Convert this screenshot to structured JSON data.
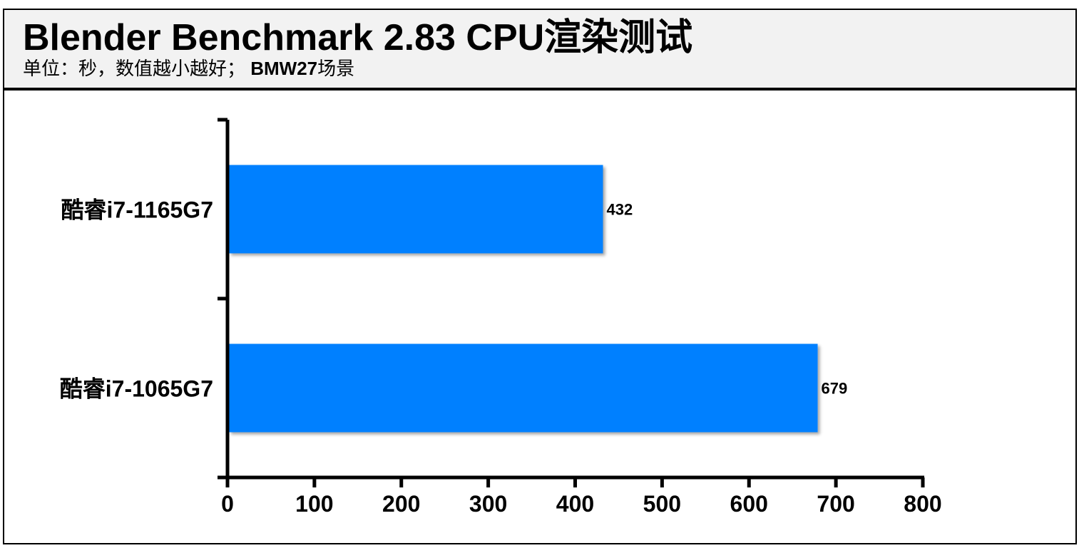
{
  "header": {
    "title": "Blender Benchmark 2.83 CPU渲染测试",
    "subtitle_prefix": "单位：秒，数值越小越好；",
    "subtitle_bold": "BMW27",
    "subtitle_suffix": "场景"
  },
  "chart_data": {
    "type": "bar",
    "orientation": "horizontal",
    "categories": [
      "酷睿i7-1165G7",
      "酷睿i7-1065G7"
    ],
    "values": [
      432,
      679
    ],
    "xlim": [
      0,
      800
    ],
    "xticks": [
      0,
      100,
      200,
      300,
      400,
      500,
      600,
      700,
      800
    ],
    "grid": false,
    "legend": "none",
    "bar_color": "#0080ff"
  }
}
